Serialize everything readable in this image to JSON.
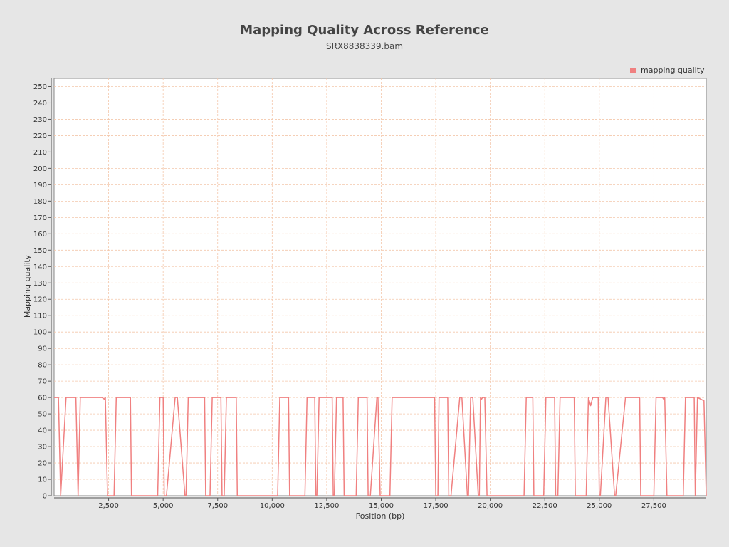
{
  "chart_data": {
    "type": "line",
    "title": "Mapping Quality Across Reference",
    "subtitle": "SRX8838339.bam",
    "xlabel": "Position (bp)",
    "ylabel": "Mapping quality",
    "xlim": [
      0,
      29903
    ],
    "ylim": [
      0,
      255
    ],
    "x_ticks": [
      2500,
      5000,
      7500,
      10000,
      12500,
      15000,
      17500,
      20000,
      22500,
      25000,
      27500
    ],
    "x_tick_labels": [
      "2,500",
      "5,000",
      "7,500",
      "10,000",
      "12,500",
      "15,000",
      "17,500",
      "20,000",
      "22,500",
      "25,000",
      "27,500"
    ],
    "y_ticks": [
      0,
      10,
      20,
      30,
      40,
      50,
      60,
      70,
      80,
      90,
      100,
      110,
      120,
      130,
      140,
      150,
      160,
      170,
      180,
      190,
      200,
      210,
      220,
      230,
      240,
      250
    ],
    "grid": true,
    "legend_position": "top-right",
    "colors": {
      "series": "#f08080",
      "grid": "#f4c7ab",
      "background": "#e6e6e6",
      "plot_background": "#ffffff"
    },
    "series": [
      {
        "name": "mapping quality",
        "x": [
          0,
          200,
          300,
          550,
          1000,
          1100,
          1200,
          2200,
          2300,
          2350,
          2450,
          2750,
          2850,
          3500,
          3550,
          3650,
          4750,
          4850,
          5000,
          5050,
          5150,
          5550,
          5650,
          6000,
          6050,
          6150,
          6250,
          6900,
          6950,
          7150,
          7250,
          7650,
          7700,
          7800,
          7900,
          8350,
          8400,
          8500,
          10250,
          10350,
          10750,
          10800,
          10900,
          11500,
          11600,
          11950,
          12000,
          12050,
          12150,
          12750,
          12800,
          12850,
          12950,
          13250,
          13300,
          13400,
          13850,
          13950,
          14350,
          14400,
          14500,
          14800,
          14850,
          14950,
          15400,
          15500,
          17450,
          17500,
          17600,
          17650,
          17750,
          18050,
          18100,
          18200,
          18600,
          18700,
          18950,
          19000,
          19100,
          19200,
          19450,
          19500,
          19550,
          19600,
          19650,
          19750,
          19850,
          19950,
          20000,
          21550,
          21650,
          21950,
          22000,
          22450,
          22550,
          22950,
          23000,
          23100,
          23200,
          23850,
          23900,
          24000,
          24400,
          24500,
          24600,
          24700,
          24800,
          24950,
          25000,
          25050,
          25300,
          25400,
          25700,
          25750,
          26200,
          26300,
          26850,
          26900,
          27500,
          27600,
          27900,
          27950,
          28000,
          28100,
          28850,
          28950,
          29350,
          29400,
          29500,
          29800,
          29903
        ],
        "values": [
          60,
          60,
          0,
          60,
          60,
          0,
          60,
          60,
          59,
          60,
          0,
          0,
          60,
          60,
          0,
          0,
          0,
          60,
          60,
          0,
          0,
          60,
          60,
          0,
          0,
          60,
          60,
          60,
          0,
          0,
          60,
          60,
          0,
          0,
          60,
          60,
          0,
          0,
          0,
          60,
          60,
          0,
          0,
          0,
          60,
          60,
          0,
          0,
          60,
          60,
          0,
          0,
          60,
          60,
          0,
          0,
          0,
          60,
          60,
          0,
          0,
          60,
          60,
          0,
          0,
          60,
          60,
          0,
          0,
          60,
          60,
          60,
          0,
          0,
          60,
          60,
          0,
          0,
          60,
          60,
          0,
          0,
          60,
          59,
          60,
          60,
          0,
          0,
          0,
          0,
          60,
          60,
          0,
          0,
          60,
          60,
          0,
          0,
          60,
          60,
          0,
          0,
          0,
          60,
          55,
          60,
          60,
          60,
          0,
          0,
          60,
          60,
          0,
          0,
          60,
          60,
          60,
          0,
          0,
          60,
          60,
          59,
          60,
          0,
          0,
          60,
          60,
          0,
          60,
          58,
          0
        ]
      }
    ]
  }
}
